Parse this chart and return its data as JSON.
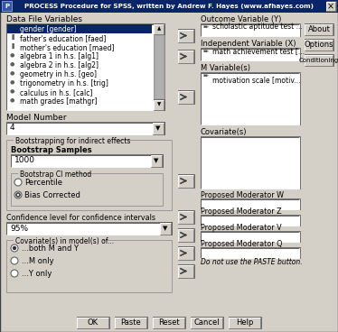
{
  "title": "PROCESS Procedure for SPSS, written by Andrew F. Hayes (www.afhayes.com)",
  "data_file_vars": [
    "gender [gender]",
    "father's education [faed]",
    "mother's education [maed]",
    "algebra 1 in h.s. [alg1]",
    "algebra 2 in h.s. [alg2]",
    "geometry in h.s. [geo]",
    "trigonometry in h.s. [trig]",
    "calculus in h.s. [calc]",
    "math grades [mathgr]"
  ],
  "outcome_var": "scholastic aptitude test ...",
  "indep_var": "math achievement test [...",
  "m_vars": "motivation scale [motiv...",
  "model_number": "4",
  "bootstrap_samples": "1000",
  "ci_level": "95%",
  "buttons_bottom": [
    "OK",
    "Paste",
    "Reset",
    "Cancel",
    "Help"
  ],
  "buttons_right": [
    "About",
    "Options",
    "Conditioning"
  ],
  "proposed_moderators": [
    "Proposed Moderator W",
    "Proposed Moderator Z",
    "Proposed Moderator V",
    "Proposed Moderator Q"
  ],
  "radio_ci": [
    "Percentile",
    "Bias Corrected"
  ],
  "radio_cov": [
    "...both M and Y",
    "...M only",
    "...Y only"
  ],
  "paste_note": "Do not use the PASTE button.",
  "bg": "#d4d0c8",
  "titlebar_bg": "#0a246a",
  "white": "#ffffff",
  "dark": "#404040",
  "mid": "#808080"
}
